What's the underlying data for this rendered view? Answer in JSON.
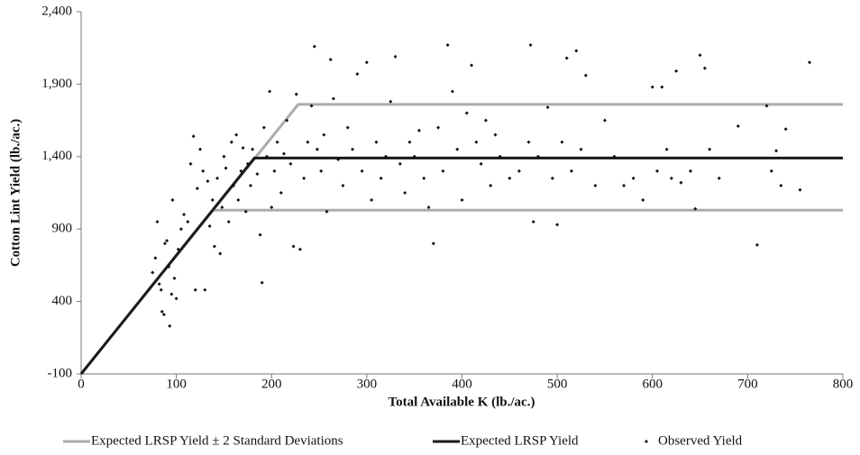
{
  "chart_data": {
    "type": "scatter",
    "x_label": "Total Available K (lb./ac.)",
    "y_label": "Cotton Lint Yield (lb./ac.)",
    "xlim": [
      0,
      800
    ],
    "xticks": [
      0,
      100,
      200,
      300,
      400,
      500,
      600,
      700,
      800
    ],
    "ylim": [
      -100,
      2400
    ],
    "yticks": [
      -100,
      400,
      900,
      {
        "value": 1400,
        "label": "1,400"
      },
      {
        "value": 1900,
        "label": "1,900"
      },
      {
        "value": 2400,
        "label": "2,400"
      }
    ],
    "grid": false,
    "legend": "bottom",
    "series": [
      {
        "name": "Expected LRSP Yield ± 2 Standard Deviations",
        "type": "line",
        "color": "#acacac",
        "x": [
          0,
          228,
          800
        ],
        "values": [
          -100,
          1760,
          1760
        ]
      },
      {
        "name": "Expected LRSP Yield ± 2 Standard Deviations",
        "type": "line",
        "color": "#acacac",
        "legend": false,
        "x": [
          138,
          800
        ],
        "values": [
          1030,
          1030
        ]
      },
      {
        "name": "Expected LRSP Yield",
        "type": "line",
        "color": "#1a1a1a",
        "x": [
          0,
          182,
          800
        ],
        "values": [
          -100,
          1390,
          1390
        ]
      },
      {
        "name": "Observed Yield",
        "type": "scatter",
        "color": "#111111",
        "x": [
          75,
          78,
          80,
          82,
          84,
          85,
          87,
          88,
          90,
          92,
          93,
          95,
          96,
          98,
          100,
          102,
          105,
          108,
          112,
          115,
          118,
          120,
          122,
          125,
          128,
          130,
          133,
          135,
          138,
          140,
          143,
          146,
          148,
          150,
          152,
          155,
          158,
          160,
          163,
          165,
          168,
          170,
          173,
          175,
          178,
          180,
          185,
          188,
          190,
          192,
          195,
          198,
          200,
          203,
          206,
          210,
          213,
          216,
          220,
          223,
          226,
          230,
          234,
          238,
          242,
          245,
          248,
          252,
          255,
          258,
          262,
          265,
          270,
          275,
          280,
          285,
          290,
          295,
          300,
          305,
          310,
          315,
          320,
          325,
          330,
          335,
          340,
          345,
          350,
          355,
          360,
          365,
          370,
          375,
          380,
          385,
          390,
          395,
          400,
          405,
          410,
          415,
          420,
          425,
          430,
          435,
          440,
          450,
          460,
          470,
          472,
          475,
          480,
          490,
          495,
          500,
          505,
          510,
          515,
          520,
          525,
          530,
          540,
          550,
          560,
          570,
          580,
          590,
          600,
          605,
          610,
          615,
          620,
          625,
          630,
          640,
          645,
          650,
          655,
          660,
          670,
          690,
          710,
          720,
          725,
          730,
          735,
          740,
          755,
          765
        ],
        "values": [
          600,
          700,
          950,
          520,
          480,
          330,
          310,
          800,
          820,
          640,
          230,
          450,
          1100,
          560,
          420,
          760,
          900,
          1000,
          950,
          1350,
          1540,
          480,
          1180,
          1450,
          1300,
          480,
          1230,
          920,
          1100,
          780,
          1250,
          730,
          1050,
          1400,
          1320,
          950,
          1500,
          1200,
          1550,
          1100,
          1300,
          1460,
          1020,
          1350,
          1200,
          1450,
          1280,
          860,
          530,
          1600,
          1400,
          1850,
          1050,
          1300,
          1500,
          1150,
          1420,
          1650,
          1350,
          780,
          1830,
          760,
          1250,
          1500,
          1750,
          2160,
          1450,
          1300,
          1550,
          1020,
          2070,
          1800,
          1380,
          1200,
          1600,
          1450,
          1970,
          1300,
          2050,
          1100,
          1500,
          1250,
          1400,
          1780,
          2090,
          1350,
          1150,
          1500,
          1400,
          1580,
          1250,
          1050,
          800,
          1600,
          1300,
          2170,
          1850,
          1450,
          1100,
          1700,
          2030,
          1500,
          1350,
          1650,
          1200,
          1550,
          1400,
          1250,
          1300,
          1500,
          2170,
          950,
          1400,
          1740,
          1250,
          930,
          1500,
          2080,
          1300,
          2130,
          1450,
          1960,
          1200,
          1650,
          1400,
          1200,
          1250,
          1100,
          1880,
          1300,
          1880,
          1450,
          1250,
          1990,
          1220,
          1300,
          1040,
          2100,
          2010,
          1450,
          1250,
          1610,
          790,
          1750,
          1300,
          1440,
          1200,
          1590,
          1170,
          2050
        ]
      }
    ]
  }
}
